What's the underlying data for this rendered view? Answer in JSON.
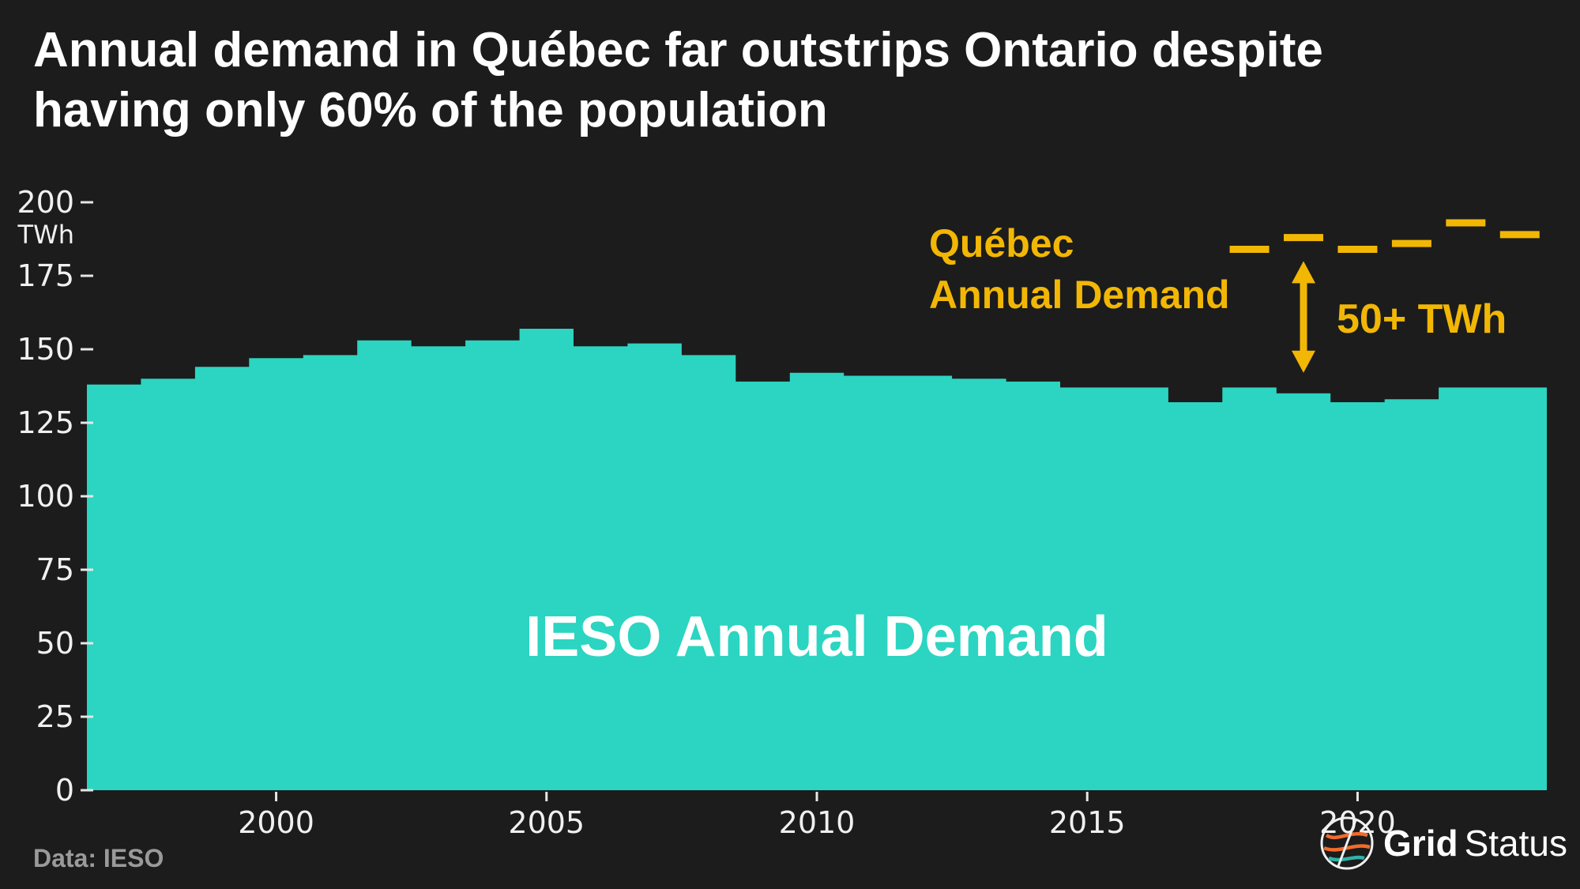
{
  "title": {
    "line1": "Annual demand in Québec far outstrips Ontario despite",
    "line2": "having only 60% of the population"
  },
  "annotations": {
    "quebec_line1": "Québec",
    "quebec_line2": "Annual Demand",
    "gap": "50+ TWh",
    "area": "IESO Annual Demand"
  },
  "footer": {
    "source": "Data: IESO",
    "brand_bold": "Grid",
    "brand_light": "Status"
  },
  "colors": {
    "background": "#1c1c1c",
    "area": "#2bd5c1",
    "accent": "#f2b705",
    "text": "#ffffff",
    "tick": "#f0f0f0",
    "muted": "#9a9a9a",
    "logo_orange": "#f26b2a",
    "logo_teal": "#2fb3a6"
  },
  "chart_data": {
    "type": "area",
    "style": "step",
    "title": "Annual demand in Québec far outstrips Ontario despite having only 60% of the population",
    "xlabel": "",
    "ylabel": "TWh",
    "ylim": [
      0,
      200
    ],
    "yticks": [
      0,
      25,
      50,
      75,
      100,
      125,
      150,
      175,
      200
    ],
    "xticks": [
      2000,
      2005,
      2010,
      2015,
      2020
    ],
    "grid": false,
    "legend_position": "none",
    "x": [
      1997,
      1998,
      1999,
      2000,
      2001,
      2002,
      2003,
      2004,
      2005,
      2006,
      2007,
      2008,
      2009,
      2010,
      2011,
      2012,
      2013,
      2014,
      2015,
      2016,
      2017,
      2018,
      2019,
      2020,
      2021,
      2022,
      2023
    ],
    "series": [
      {
        "name": "IESO Annual Demand",
        "type": "step-area",
        "color": "#2bd5c1",
        "values": [
          138,
          140,
          144,
          147,
          148,
          153,
          151,
          153,
          157,
          151,
          152,
          148,
          139,
          142,
          141,
          141,
          140,
          139,
          137,
          137,
          132,
          137,
          135,
          132,
          133,
          137,
          137
        ]
      },
      {
        "name": "Québec Annual Demand",
        "type": "dash-marker",
        "color": "#f2b705",
        "x": [
          2018,
          2019,
          2020,
          2021,
          2022,
          2023
        ],
        "values": [
          184,
          188,
          184,
          186,
          193,
          189
        ]
      }
    ],
    "annotation": {
      "text": "50+ TWh",
      "at_year": 2019,
      "from_twh": 180,
      "to_twh": 142
    }
  }
}
